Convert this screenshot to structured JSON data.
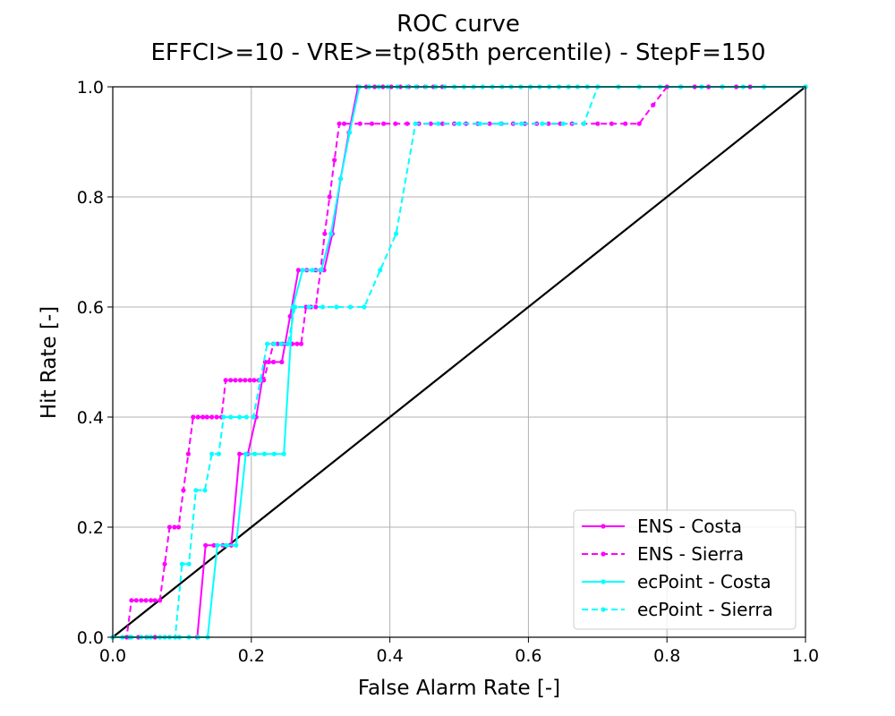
{
  "chart_data": {
    "type": "line",
    "title": "ROC curve",
    "subtitle": "EFFCI>=10 - VRE>=tp(85th percentile) - StepF=150",
    "xlabel": "False Alarm Rate [-]",
    "ylabel": "Hit Rate [-]",
    "xlim": [
      0.0,
      1.0
    ],
    "ylim": [
      0.0,
      1.0
    ],
    "xticks": [
      "0.0",
      "0.2",
      "0.4",
      "0.6",
      "0.8",
      "1.0"
    ],
    "yticks": [
      "0.0",
      "0.2",
      "0.4",
      "0.6",
      "0.8",
      "1.0"
    ],
    "grid": true,
    "legend_position": "lower-right",
    "diagonal": {
      "x": [
        0.0,
        1.0
      ],
      "y": [
        0.0,
        1.0
      ],
      "color": "#000000"
    },
    "series": [
      {
        "name": "ENS - Costa",
        "color": "#ff00ff",
        "style": "solid",
        "x": [
          0.0,
          0.024,
          0.037,
          0.049,
          0.061,
          0.122,
          0.134,
          0.146,
          0.159,
          0.171,
          0.183,
          0.195,
          0.207,
          0.22,
          0.232,
          0.244,
          0.256,
          0.268,
          0.28,
          0.293,
          0.305,
          0.317,
          0.329,
          0.341,
          0.354,
          0.366,
          0.378,
          0.39,
          0.402,
          0.415,
          0.427,
          0.439,
          0.451,
          0.463,
          0.476,
          1.0
        ],
        "y": [
          0.0,
          0.0,
          0.0,
          0.0,
          0.0,
          0.0,
          0.167,
          0.167,
          0.167,
          0.167,
          0.333,
          0.333,
          0.4,
          0.5,
          0.5,
          0.5,
          0.583,
          0.667,
          0.667,
          0.667,
          0.667,
          0.733,
          0.833,
          0.917,
          1.0,
          1.0,
          1.0,
          1.0,
          1.0,
          1.0,
          1.0,
          1.0,
          1.0,
          1.0,
          1.0,
          1.0
        ]
      },
      {
        "name": "ENS - Sierra",
        "color": "#ff00ff",
        "style": "dashed",
        "x": [
          0.0,
          0.02,
          0.027,
          0.034,
          0.041,
          0.048,
          0.055,
          0.061,
          0.068,
          0.075,
          0.082,
          0.089,
          0.095,
          0.102,
          0.109,
          0.116,
          0.123,
          0.13,
          0.136,
          0.143,
          0.15,
          0.157,
          0.163,
          0.17,
          0.177,
          0.184,
          0.191,
          0.198,
          0.204,
          0.211,
          0.218,
          0.225,
          0.232,
          0.238,
          0.245,
          0.252,
          0.259,
          0.266,
          0.272,
          0.279,
          0.286,
          0.293,
          0.3,
          0.306,
          0.313,
          0.32,
          0.327,
          0.334,
          0.357,
          0.374,
          0.391,
          0.408,
          0.425,
          0.442,
          0.459,
          0.476,
          0.493,
          0.51,
          0.527,
          0.544,
          0.561,
          0.578,
          0.595,
          0.612,
          0.629,
          0.646,
          0.663,
          0.68,
          0.7,
          0.72,
          0.74,
          0.76,
          0.78,
          0.8,
          0.82,
          0.84,
          0.86,
          0.88,
          0.9,
          0.92,
          0.94,
          1.0
        ],
        "y": [
          0.0,
          0.0,
          0.067,
          0.067,
          0.067,
          0.067,
          0.067,
          0.067,
          0.067,
          0.133,
          0.2,
          0.2,
          0.2,
          0.267,
          0.333,
          0.4,
          0.4,
          0.4,
          0.4,
          0.4,
          0.4,
          0.4,
          0.467,
          0.467,
          0.467,
          0.467,
          0.467,
          0.467,
          0.467,
          0.467,
          0.467,
          0.5,
          0.533,
          0.533,
          0.533,
          0.533,
          0.533,
          0.533,
          0.533,
          0.6,
          0.6,
          0.6,
          0.667,
          0.733,
          0.8,
          0.867,
          0.933,
          0.933,
          0.933,
          0.933,
          0.933,
          0.933,
          0.933,
          0.933,
          0.933,
          0.933,
          0.933,
          0.933,
          0.933,
          0.933,
          0.933,
          0.933,
          0.933,
          0.933,
          0.933,
          0.933,
          0.933,
          0.933,
          0.933,
          0.933,
          0.933,
          0.933,
          0.967,
          1.0,
          1.0,
          1.0,
          1.0,
          1.0,
          1.0,
          1.0,
          1.0,
          1.0
        ]
      },
      {
        "name": "ecPoint - Costa",
        "color": "#00ffff",
        "style": "solid",
        "x": [
          0.0,
          0.014,
          0.027,
          0.041,
          0.055,
          0.068,
          0.082,
          0.096,
          0.11,
          0.123,
          0.137,
          0.151,
          0.164,
          0.178,
          0.192,
          0.205,
          0.219,
          0.233,
          0.247,
          0.26,
          0.274,
          0.288,
          0.301,
          0.315,
          0.329,
          0.342,
          0.356,
          0.37,
          0.384,
          0.397,
          0.411,
          0.425,
          0.438,
          0.452,
          0.466,
          0.479,
          0.493,
          0.507,
          0.521,
          0.534,
          0.548,
          0.562,
          0.575,
          0.589,
          0.603,
          0.616,
          0.63,
          0.644,
          0.658,
          0.671,
          0.685,
          1.0
        ],
        "y": [
          0.0,
          0.0,
          0.0,
          0.0,
          0.0,
          0.0,
          0.0,
          0.0,
          0.0,
          0.0,
          0.0,
          0.167,
          0.167,
          0.167,
          0.333,
          0.333,
          0.333,
          0.333,
          0.333,
          0.6,
          0.667,
          0.667,
          0.667,
          0.733,
          0.833,
          0.917,
          1.0,
          1.0,
          1.0,
          1.0,
          1.0,
          1.0,
          1.0,
          1.0,
          1.0,
          1.0,
          1.0,
          1.0,
          1.0,
          1.0,
          1.0,
          1.0,
          1.0,
          1.0,
          1.0,
          1.0,
          1.0,
          1.0,
          1.0,
          1.0,
          1.0,
          1.0
        ]
      },
      {
        "name": "ecPoint - Sierra",
        "color": "#00ffff",
        "style": "dashed",
        "x": [
          0.0,
          0.025,
          0.05,
          0.075,
          0.09,
          0.1,
          0.11,
          0.12,
          0.133,
          0.143,
          0.153,
          0.16,
          0.17,
          0.183,
          0.193,
          0.203,
          0.213,
          0.223,
          0.233,
          0.243,
          0.253,
          0.263,
          0.283,
          0.303,
          0.323,
          0.343,
          0.363,
          0.386,
          0.409,
          0.437,
          0.47,
          0.5,
          0.53,
          0.56,
          0.59,
          0.62,
          0.65,
          0.68,
          0.7,
          0.73,
          0.76,
          0.79,
          0.82,
          0.85,
          0.88,
          0.91,
          0.94,
          1.0
        ],
        "y": [
          0.0,
          0.0,
          0.0,
          0.0,
          0.0,
          0.133,
          0.133,
          0.267,
          0.267,
          0.333,
          0.333,
          0.4,
          0.4,
          0.4,
          0.4,
          0.4,
          0.467,
          0.533,
          0.533,
          0.533,
          0.533,
          0.6,
          0.6,
          0.6,
          0.6,
          0.6,
          0.6,
          0.667,
          0.733,
          0.933,
          0.933,
          0.933,
          0.933,
          0.933,
          0.933,
          0.933,
          0.933,
          0.933,
          1.0,
          1.0,
          1.0,
          1.0,
          1.0,
          1.0,
          1.0,
          1.0,
          1.0,
          1.0
        ]
      }
    ]
  }
}
